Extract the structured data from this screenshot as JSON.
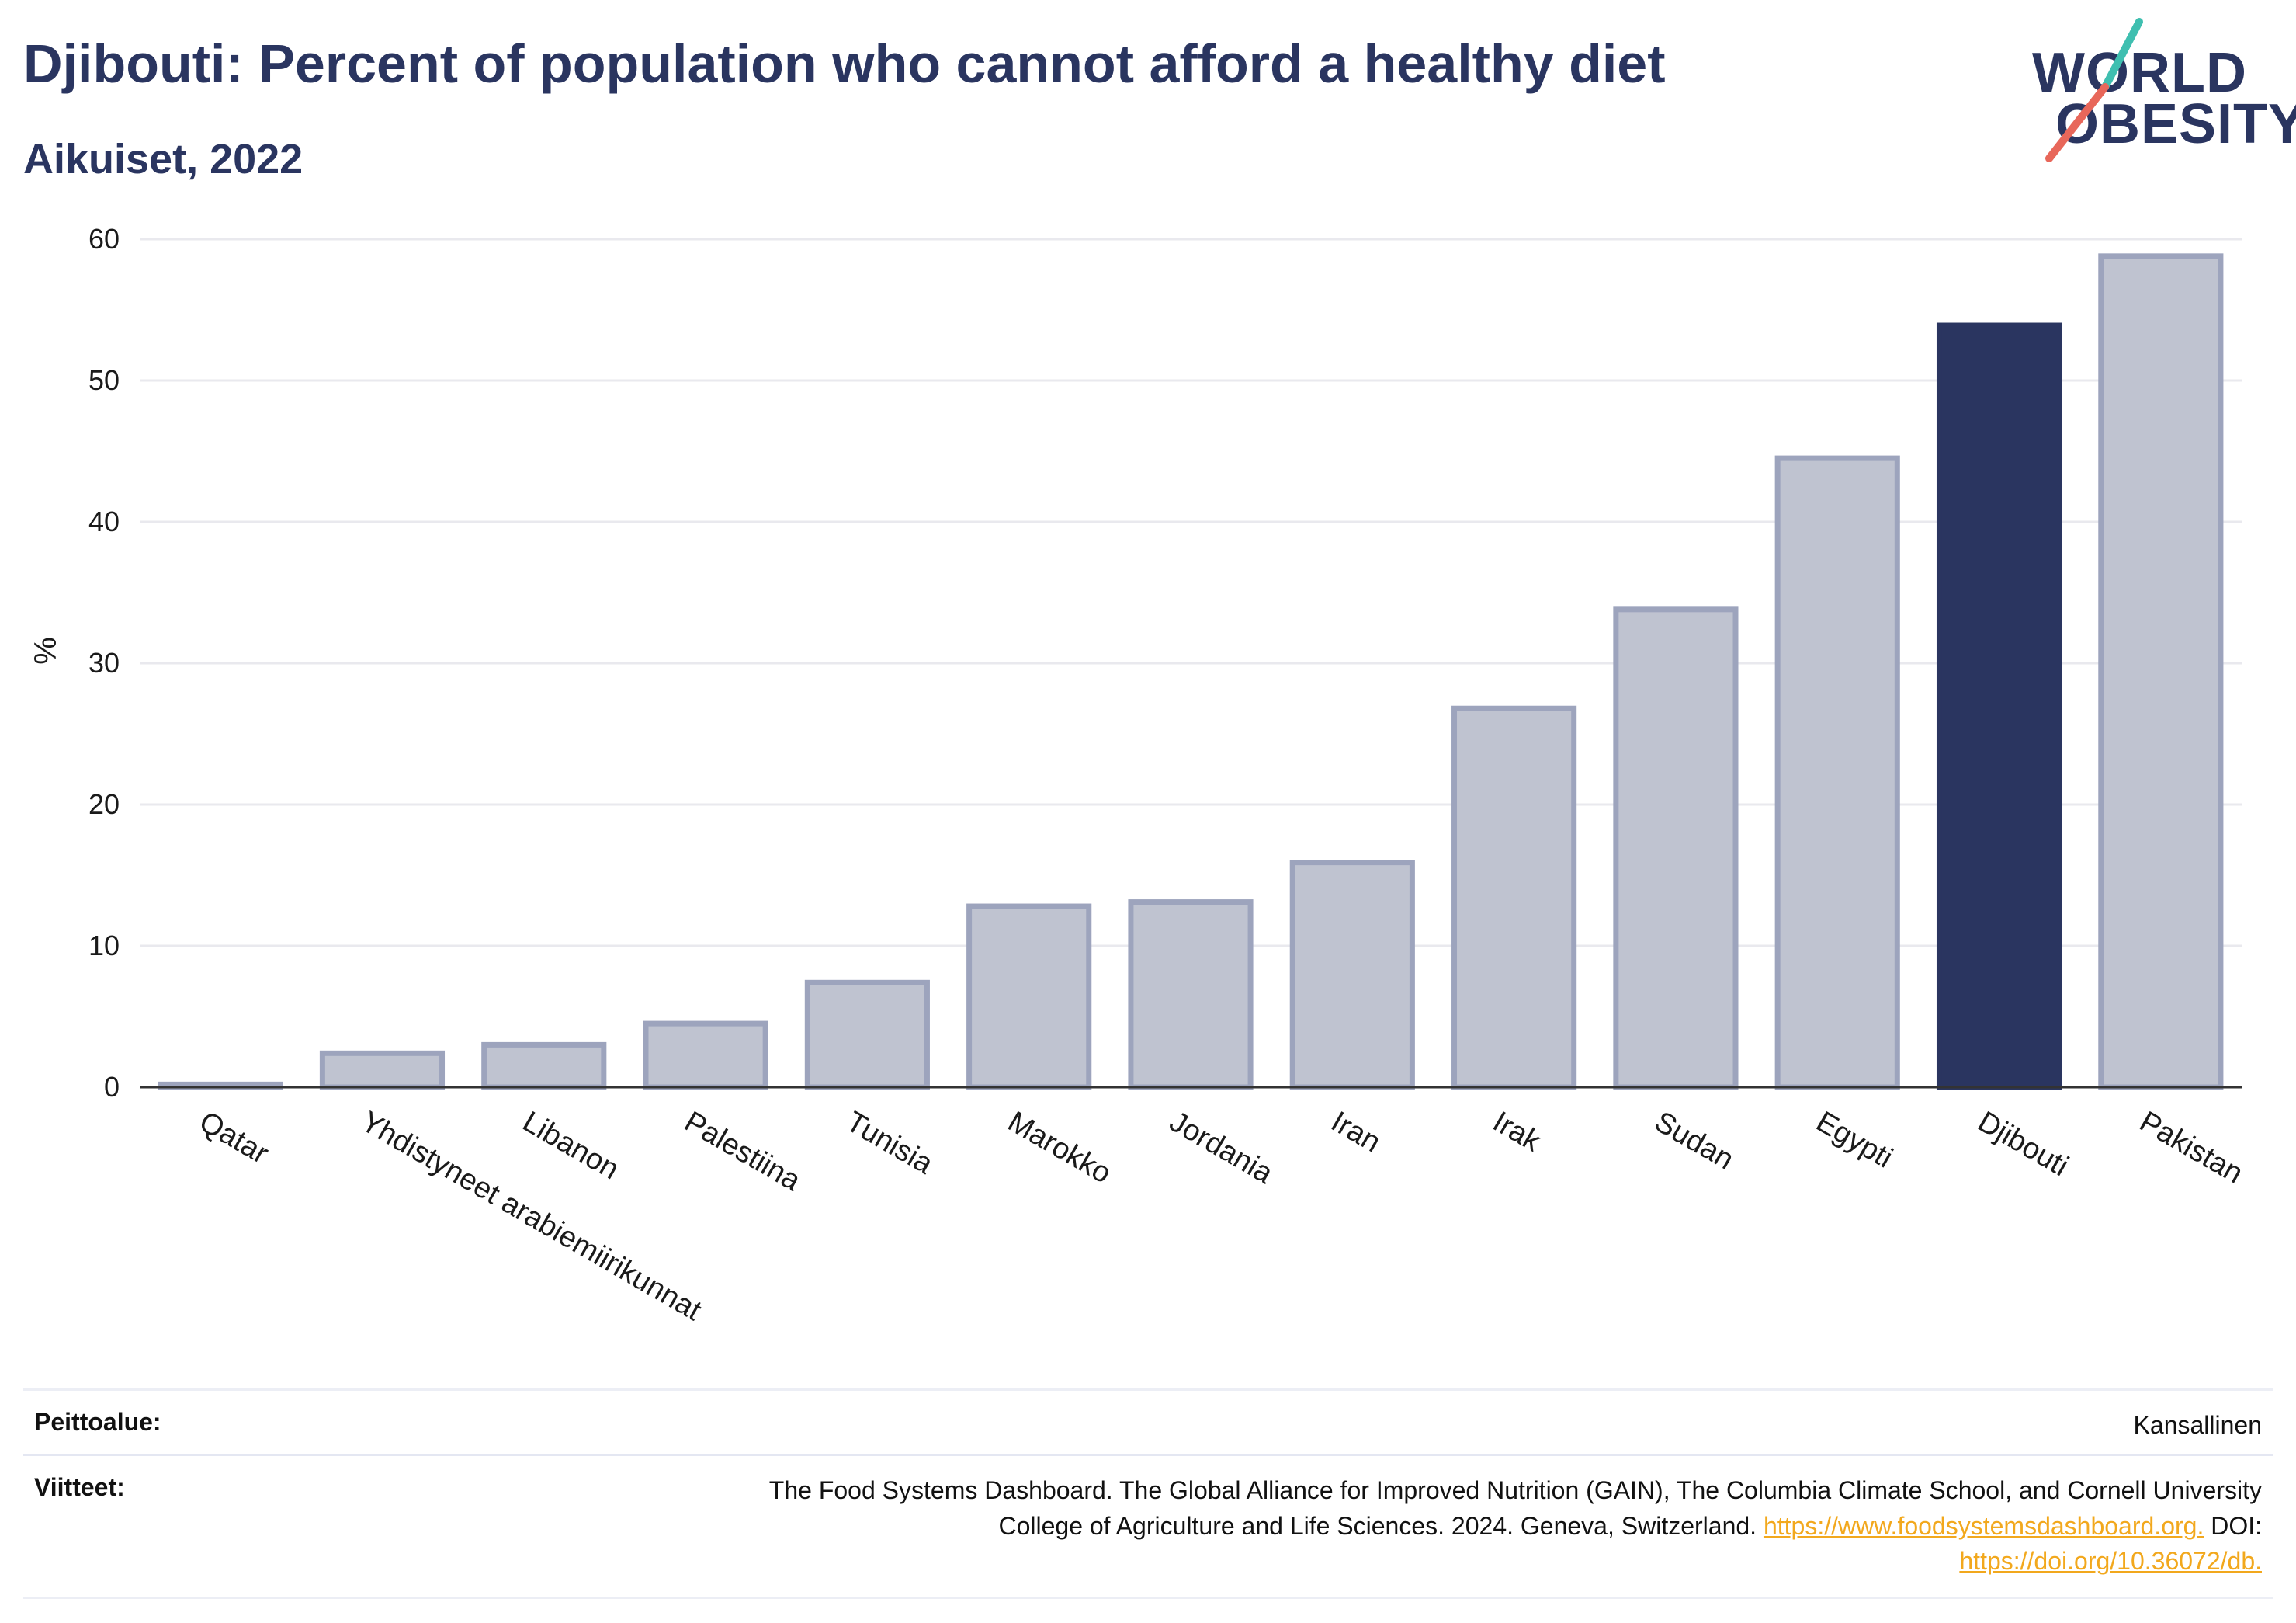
{
  "header": {
    "title": "Djibouti: Percent of population who cannot afford a healthy diet",
    "subtitle": "Aikuiset, 2022"
  },
  "logo": {
    "line1": "WORLD",
    "line2": "OBESITY",
    "accent_teal": "#3fbfb0",
    "accent_red": "#e8675a"
  },
  "colors": {
    "highlight": "#2a3560",
    "bar": "#bfc3d0",
    "bar_border": "#9da4bd",
    "grid": "#e9e9ee",
    "axis": "#333333"
  },
  "chart_data": {
    "type": "bar",
    "title": "Djibouti: Percent of population who cannot afford a healthy diet",
    "subtitle": "Aikuiset, 2022",
    "xlabel": "",
    "ylabel": "%",
    "ylim": [
      0,
      60
    ],
    "yticks": [
      0,
      10,
      20,
      30,
      40,
      50,
      60
    ],
    "grid": true,
    "highlight": "Djibouti",
    "categories": [
      "Qatar",
      "Yhdistyneet arabiemiirikunnat",
      "Libanon",
      "Palestiina",
      "Tunisia",
      "Marokko",
      "Jordania",
      "Iran",
      "Irak",
      "Sudan",
      "Egypti",
      "Djibouti",
      "Pakistan"
    ],
    "values": [
      0.2,
      2.4,
      3.0,
      4.5,
      7.4,
      12.8,
      13.1,
      15.9,
      26.8,
      33.8,
      44.5,
      53.9,
      58.8
    ]
  },
  "footer": {
    "coverage_label": "Peittoalue:",
    "coverage_value": "Kansallinen",
    "refs_label": "Viitteet:",
    "refs_line1": "The Food Systems Dashboard. The Global Alliance for Improved Nutrition (GAIN), The Columbia Climate School, and Cornell University",
    "refs_line2": "College of Agriculture and Life Sciences. 2024. Geneva, Switzerland.",
    "refs_link1": "https://www.foodsystemsdashboard.org.",
    "refs_doi_label": "DOI:",
    "refs_link2": "https://doi.org/10.36072/db."
  }
}
